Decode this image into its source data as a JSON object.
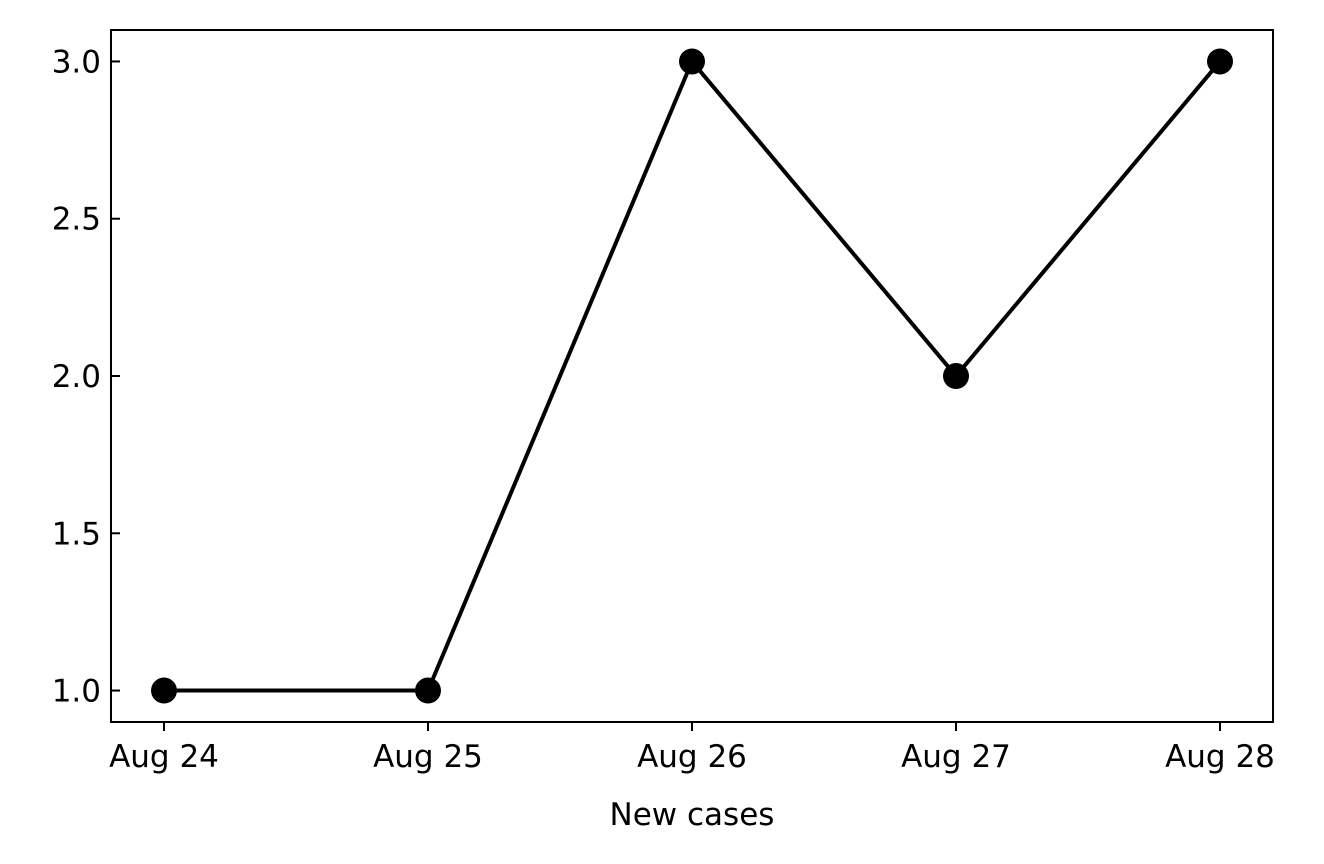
{
  "chart_data": {
    "type": "line",
    "title": "",
    "xlabel": "New cases",
    "ylabel": "",
    "categories": [
      "Aug 24",
      "Aug 25",
      "Aug 26",
      "Aug 27",
      "Aug 28"
    ],
    "values": [
      1,
      1,
      3,
      2,
      3
    ],
    "ylim": [
      0.9,
      3.1
    ],
    "yticks": [
      1.0,
      1.5,
      2.0,
      2.5,
      3.0
    ],
    "ytick_labels": [
      "1.0",
      "1.5",
      "2.0",
      "2.5",
      "3.0"
    ],
    "grid": false,
    "legend": "none",
    "line_color": "#000000",
    "marker": "circle"
  }
}
